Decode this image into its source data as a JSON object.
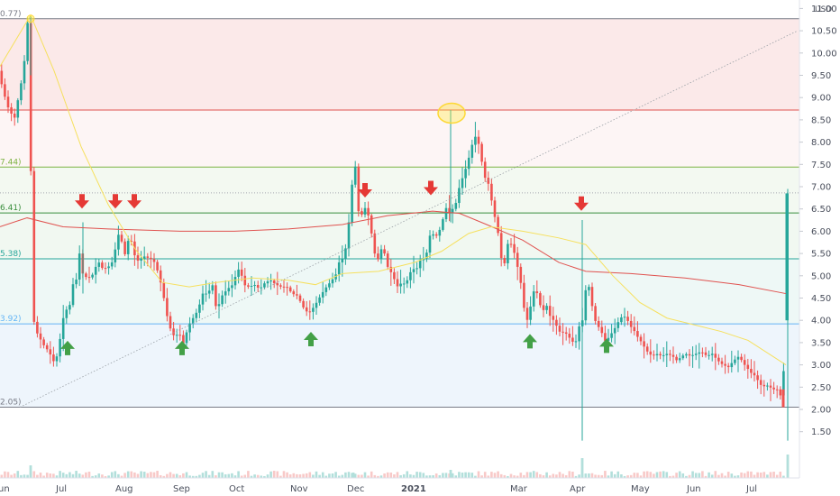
{
  "chart_data": {
    "type": "candlestick",
    "currency": "USD",
    "y_axis": {
      "ticks": [
        "11.50",
        "11.00",
        "10.50",
        "10.00",
        "9.50",
        "9.00",
        "8.50",
        "8.00",
        "7.50",
        "7.00",
        "6.50",
        "6.00",
        "5.50",
        "5.00",
        "4.50",
        "4.00",
        "3.50",
        "3.00",
        "2.50",
        "2.00",
        "1.50"
      ],
      "ylim": [
        1.3,
        11.7
      ],
      "side": "right"
    },
    "x_axis": {
      "labels": [
        "un",
        "Jul",
        "Aug",
        "Sep",
        "Oct",
        "Nov",
        "Dec",
        "2021",
        "Mar",
        "Apr",
        "May",
        "Jun",
        "Jul"
      ],
      "bold_label": "2021"
    },
    "fib_levels": [
      {
        "label": "0.77)",
        "value": 10.77,
        "color": "#787b86"
      },
      {
        "label": "",
        "value": 8.72,
        "color": "#e0524f"
      },
      {
        "label": "7.44)",
        "value": 7.44,
        "color": "#7cb342"
      },
      {
        "label": "",
        "value": 6.86,
        "color": "#a5a8b0"
      },
      {
        "label": "6.41)",
        "value": 6.41,
        "color": "#388e3c"
      },
      {
        "label": "5.38)",
        "value": 5.38,
        "color": "#26a69a"
      },
      {
        "label": "3.92)",
        "value": 3.92,
        "color": "#64b5f6"
      },
      {
        "label": "2.05)",
        "value": 2.05,
        "color": "#787b86"
      }
    ],
    "zone_colors": {
      "top": "#fbe9e9",
      "upper": "#fdf5f5",
      "mid_green": "#f3f9f1",
      "mid": "#f1f8f1",
      "lower": "#eef8f6",
      "bottom": "#eef5fc"
    },
    "series": [
      {
        "name": "",
        "kind": "moving_average_long",
        "color": "#e0524f",
        "points": [
          [
            0,
            6.1
          ],
          [
            30,
            6.3
          ],
          [
            70,
            6.1
          ],
          [
            120,
            6.05
          ],
          [
            200,
            6.0
          ],
          [
            260,
            6.0
          ],
          [
            320,
            6.05
          ],
          [
            380,
            6.15
          ],
          [
            430,
            6.35
          ],
          [
            480,
            6.45
          ],
          [
            510,
            6.4
          ],
          [
            540,
            6.15
          ],
          [
            580,
            5.8
          ],
          [
            620,
            5.3
          ],
          [
            650,
            5.1
          ],
          [
            700,
            5.05
          ],
          [
            760,
            4.95
          ],
          [
            820,
            4.8
          ],
          [
            872,
            4.6
          ]
        ]
      },
      {
        "name": "",
        "kind": "moving_average_short",
        "color": "#f6e05e",
        "points": [
          [
            0,
            9.7
          ],
          [
            34,
            10.85
          ],
          [
            60,
            9.6
          ],
          [
            90,
            7.9
          ],
          [
            120,
            6.6
          ],
          [
            150,
            5.6
          ],
          [
            180,
            4.85
          ],
          [
            210,
            4.75
          ],
          [
            240,
            4.85
          ],
          [
            280,
            4.95
          ],
          [
            320,
            4.9
          ],
          [
            350,
            4.8
          ],
          [
            380,
            5.05
          ],
          [
            420,
            5.1
          ],
          [
            460,
            5.3
          ],
          [
            490,
            5.55
          ],
          [
            520,
            5.95
          ],
          [
            545,
            6.1
          ],
          [
            580,
            6.0
          ],
          [
            620,
            5.85
          ],
          [
            650,
            5.7
          ],
          [
            680,
            5.0
          ],
          [
            710,
            4.4
          ],
          [
            740,
            4.05
          ],
          [
            770,
            3.9
          ],
          [
            800,
            3.75
          ],
          [
            830,
            3.55
          ],
          [
            872,
            3.0
          ]
        ]
      },
      {
        "name": "",
        "kind": "trendline",
        "color": "#9aa0a6",
        "points": [
          [
            22,
            2.05
          ],
          [
            885,
            10.5
          ]
        ]
      }
    ],
    "price_path": [
      [
        0,
        9.6
      ],
      [
        6,
        9.1
      ],
      [
        12,
        8.7
      ],
      [
        18,
        8.55
      ],
      [
        24,
        9.2
      ],
      [
        28,
        9.6
      ],
      [
        32,
        10.7
      ],
      [
        35,
        10.5
      ],
      [
        37,
        4.2
      ],
      [
        42,
        3.75
      ],
      [
        50,
        3.45
      ],
      [
        56,
        3.3
      ],
      [
        62,
        3.05
      ],
      [
        66,
        3.25
      ],
      [
        70,
        3.8
      ],
      [
        74,
        4.3
      ],
      [
        78,
        4.15
      ],
      [
        82,
        4.8
      ],
      [
        86,
        4.85
      ],
      [
        90,
        5.5
      ],
      [
        94,
        5.0
      ],
      [
        100,
        4.95
      ],
      [
        106,
        5.05
      ],
      [
        110,
        5.35
      ],
      [
        116,
        5.15
      ],
      [
        122,
        5.2
      ],
      [
        128,
        5.35
      ],
      [
        132,
        5.95
      ],
      [
        136,
        5.85
      ],
      [
        140,
        5.45
      ],
      [
        146,
        5.95
      ],
      [
        150,
        5.5
      ],
      [
        156,
        5.3
      ],
      [
        160,
        5.45
      ],
      [
        166,
        5.4
      ],
      [
        172,
        5.35
      ],
      [
        176,
        5.15
      ],
      [
        182,
        4.7
      ],
      [
        186,
        4.2
      ],
      [
        190,
        3.85
      ],
      [
        196,
        3.6
      ],
      [
        200,
        3.75
      ],
      [
        206,
        3.45
      ],
      [
        210,
        3.85
      ],
      [
        216,
        4.05
      ],
      [
        222,
        4.25
      ],
      [
        226,
        4.6
      ],
      [
        232,
        4.6
      ],
      [
        238,
        4.8
      ],
      [
        242,
        4.2
      ],
      [
        248,
        4.55
      ],
      [
        254,
        4.7
      ],
      [
        260,
        4.8
      ],
      [
        264,
        5.05
      ],
      [
        268,
        5.2
      ],
      [
        272,
        4.8
      ],
      [
        278,
        4.75
      ],
      [
        284,
        4.8
      ],
      [
        290,
        4.7
      ],
      [
        296,
        4.85
      ],
      [
        302,
        4.9
      ],
      [
        308,
        4.8
      ],
      [
        314,
        4.75
      ],
      [
        320,
        4.75
      ],
      [
        326,
        4.6
      ],
      [
        332,
        4.55
      ],
      [
        338,
        4.3
      ],
      [
        344,
        4.15
      ],
      [
        350,
        4.3
      ],
      [
        356,
        4.5
      ],
      [
        362,
        4.7
      ],
      [
        368,
        4.85
      ],
      [
        374,
        5.0
      ],
      [
        378,
        5.3
      ],
      [
        384,
        5.45
      ],
      [
        388,
        6.0
      ],
      [
        392,
        7.0
      ],
      [
        396,
        7.45
      ],
      [
        398,
        6.55
      ],
      [
        402,
        6.3
      ],
      [
        406,
        6.55
      ],
      [
        410,
        6.4
      ],
      [
        414,
        5.95
      ],
      [
        418,
        5.45
      ],
      [
        422,
        5.35
      ],
      [
        426,
        5.7
      ],
      [
        432,
        5.2
      ],
      [
        438,
        5.0
      ],
      [
        442,
        4.75
      ],
      [
        448,
        4.85
      ],
      [
        452,
        4.8
      ],
      [
        456,
        5.05
      ],
      [
        460,
        5.15
      ],
      [
        464,
        5.15
      ],
      [
        468,
        5.35
      ],
      [
        472,
        5.4
      ],
      [
        476,
        5.55
      ],
      [
        480,
        6.05
      ],
      [
        484,
        5.85
      ],
      [
        488,
        5.95
      ],
      [
        492,
        6.15
      ],
      [
        496,
        6.55
      ],
      [
        500,
        6.4
      ],
      [
        504,
        6.5
      ],
      [
        508,
        6.65
      ],
      [
        512,
        7.05
      ],
      [
        516,
        7.25
      ],
      [
        520,
        7.5
      ],
      [
        524,
        7.8
      ],
      [
        528,
        8.15
      ],
      [
        532,
        8.05
      ],
      [
        536,
        7.6
      ],
      [
        540,
        7.2
      ],
      [
        544,
        7.05
      ],
      [
        548,
        6.6
      ],
      [
        552,
        6.2
      ],
      [
        556,
        5.8
      ],
      [
        560,
        5.0
      ],
      [
        564,
        5.7
      ],
      [
        568,
        5.75
      ],
      [
        572,
        5.55
      ],
      [
        576,
        5.2
      ],
      [
        580,
        4.8
      ],
      [
        584,
        4.15
      ],
      [
        588,
        3.95
      ],
      [
        592,
        4.55
      ],
      [
        596,
        4.75
      ],
      [
        600,
        4.4
      ],
      [
        604,
        4.2
      ],
      [
        608,
        4.35
      ],
      [
        612,
        4.1
      ],
      [
        616,
        4.0
      ],
      [
        620,
        3.85
      ],
      [
        624,
        3.7
      ],
      [
        628,
        3.75
      ],
      [
        632,
        3.65
      ],
      [
        636,
        3.55
      ],
      [
        640,
        3.45
      ],
      [
        644,
        3.85
      ],
      [
        648,
        4.0
      ],
      [
        652,
        4.75
      ],
      [
        654,
        4.9
      ],
      [
        658,
        4.4
      ],
      [
        662,
        4.0
      ],
      [
        666,
        3.85
      ],
      [
        670,
        3.7
      ],
      [
        674,
        3.5
      ],
      [
        678,
        3.65
      ],
      [
        682,
        3.75
      ],
      [
        686,
        3.9
      ],
      [
        690,
        4.05
      ],
      [
        694,
        4.1
      ],
      [
        698,
        4.0
      ],
      [
        702,
        3.85
      ],
      [
        706,
        3.75
      ],
      [
        710,
        3.6
      ],
      [
        714,
        3.5
      ],
      [
        718,
        3.35
      ],
      [
        722,
        3.25
      ],
      [
        726,
        3.2
      ],
      [
        730,
        3.25
      ],
      [
        736,
        3.2
      ],
      [
        742,
        3.25
      ],
      [
        748,
        3.2
      ],
      [
        752,
        3.1
      ],
      [
        756,
        3.15
      ],
      [
        762,
        3.25
      ],
      [
        768,
        3.2
      ],
      [
        774,
        3.25
      ],
      [
        780,
        3.3
      ],
      [
        786,
        3.2
      ],
      [
        792,
        3.25
      ],
      [
        798,
        3.1
      ],
      [
        804,
        3.0
      ],
      [
        810,
        2.95
      ],
      [
        816,
        3.1
      ],
      [
        822,
        3.2
      ],
      [
        826,
        3.05
      ],
      [
        830,
        2.95
      ],
      [
        836,
        2.8
      ],
      [
        840,
        2.75
      ],
      [
        844,
        2.6
      ],
      [
        848,
        2.5
      ],
      [
        852,
        2.55
      ],
      [
        856,
        2.5
      ],
      [
        860,
        2.45
      ],
      [
        864,
        2.45
      ],
      [
        868,
        2.3
      ],
      [
        870,
        2.1
      ],
      [
        873,
        4.0
      ],
      [
        874,
        6.85
      ]
    ],
    "annotations": {
      "sell_markers": [
        {
          "value": 6.65
        },
        {
          "value": 6.65
        },
        {
          "value": 6.65
        },
        {
          "value": 6.9
        },
        {
          "value": 6.95
        },
        {
          "value": 6.6
        }
      ],
      "buy_markers": [
        {
          "value": 3.4
        },
        {
          "value": 3.4
        },
        {
          "value": 3.6
        },
        {
          "value": 3.55
        },
        {
          "value": 3.45
        }
      ],
      "highlight_circle": {
        "value": 8.65
      }
    }
  }
}
